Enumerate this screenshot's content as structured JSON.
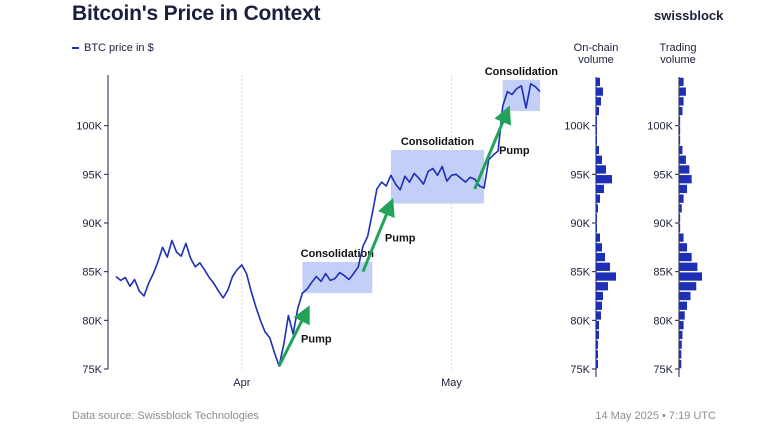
{
  "header": {
    "title": "Bitcoin's Price in Context",
    "brand": "swissblock"
  },
  "legend_label": "BTC price in $",
  "columns": {
    "onchain": [
      "On-chain",
      "volume"
    ],
    "trading": [
      "Trading",
      "volume"
    ]
  },
  "footer": {
    "source": "Data source: Swissblock Technologies",
    "timestamp": "14 May 2025 • 7:19 UTC"
  },
  "colors": {
    "line": "#1d2fb5",
    "box": "#b8c7f5",
    "arrow": "#21a35a",
    "grid": "#d7d7dc",
    "bar": "#1d2fb5"
  },
  "chart_data": {
    "type": "line",
    "series": [
      {
        "name": "BTC price in $",
        "values": [
          [
            0,
            84.5
          ],
          [
            1,
            84.1
          ],
          [
            2,
            84.4
          ],
          [
            3,
            83.5
          ],
          [
            4,
            84.2
          ],
          [
            5,
            83.0
          ],
          [
            6,
            82.5
          ],
          [
            7,
            83.8
          ],
          [
            8,
            84.8
          ],
          [
            9,
            86.0
          ],
          [
            10,
            87.5
          ],
          [
            11,
            86.5
          ],
          [
            12,
            88.2
          ],
          [
            13,
            87.0
          ],
          [
            14,
            86.6
          ],
          [
            15,
            87.9
          ],
          [
            16,
            86.4
          ],
          [
            17,
            85.5
          ],
          [
            18,
            85.9
          ],
          [
            19,
            85.2
          ],
          [
            20,
            84.4
          ],
          [
            21,
            83.8
          ],
          [
            22,
            83.0
          ],
          [
            23,
            82.3
          ],
          [
            24,
            83.1
          ],
          [
            25,
            84.5
          ],
          [
            26,
            85.2
          ],
          [
            27,
            85.7
          ],
          [
            28,
            84.8
          ],
          [
            29,
            83.0
          ],
          [
            30,
            81.4
          ],
          [
            31,
            80.0
          ],
          [
            32,
            78.8
          ],
          [
            33,
            78.2
          ],
          [
            34,
            76.7
          ],
          [
            35,
            75.3
          ],
          [
            36,
            77.5
          ],
          [
            37,
            80.5
          ],
          [
            38,
            78.6
          ],
          [
            39,
            81.2
          ],
          [
            40,
            82.8
          ],
          [
            41,
            83.2
          ],
          [
            42,
            83.9
          ],
          [
            43,
            84.5
          ],
          [
            44,
            84.0
          ],
          [
            45,
            84.8
          ],
          [
            46,
            84.1
          ],
          [
            47,
            84.3
          ],
          [
            48,
            84.9
          ],
          [
            49,
            84.6
          ],
          [
            50,
            84.2
          ],
          [
            51,
            84.8
          ],
          [
            52,
            85.5
          ],
          [
            53,
            87.6
          ],
          [
            54,
            88.6
          ],
          [
            55,
            91.0
          ],
          [
            56,
            93.5
          ],
          [
            57,
            94.2
          ],
          [
            58,
            93.8
          ],
          [
            59,
            94.9
          ],
          [
            60,
            94.0
          ],
          [
            61,
            93.4
          ],
          [
            62,
            94.8
          ],
          [
            63,
            94.2
          ],
          [
            64,
            95.1
          ],
          [
            65,
            94.6
          ],
          [
            66,
            94.0
          ],
          [
            67,
            95.3
          ],
          [
            68,
            95.6
          ],
          [
            69,
            94.9
          ],
          [
            70,
            95.8
          ],
          [
            71,
            94.3
          ],
          [
            72,
            94.9
          ],
          [
            73,
            95.0
          ],
          [
            74,
            94.6
          ],
          [
            75,
            94.2
          ],
          [
            76,
            94.7
          ],
          [
            77,
            94.5
          ],
          [
            78,
            93.8
          ],
          [
            79,
            93.6
          ],
          [
            80,
            96.5
          ],
          [
            81,
            97.0
          ],
          [
            82,
            97.4
          ],
          [
            83,
            102.0
          ],
          [
            84,
            103.5
          ],
          [
            85,
            103.2
          ],
          [
            86,
            103.8
          ],
          [
            87,
            104.1
          ],
          [
            88,
            101.8
          ],
          [
            89,
            104.3
          ],
          [
            90,
            104.0
          ],
          [
            91,
            103.5
          ]
        ]
      }
    ],
    "x_ticks": [
      {
        "x": 27,
        "label": "Apr"
      },
      {
        "x": 72,
        "label": "May"
      }
    ],
    "xlim": [
      0,
      91
    ],
    "ylim": [
      75,
      105
    ],
    "y_ticks": [
      75,
      80,
      85,
      90,
      95,
      100
    ],
    "y_tick_labels": [
      "75K",
      "80K",
      "85K",
      "90K",
      "95K",
      "100K"
    ],
    "grid": "vertical dotted at month starts",
    "annotations": [
      {
        "type": "box",
        "label": "Consolidation",
        "x0": 40,
        "x1": 55,
        "y0": 82.8,
        "y1": 86.0
      },
      {
        "type": "box",
        "label": "Consolidation",
        "x0": 59,
        "x1": 79,
        "y0": 92.0,
        "y1": 97.5
      },
      {
        "type": "box",
        "label": "Consolidation",
        "x0": 83,
        "x1": 91,
        "y0": 101.5,
        "y1": 104.7
      },
      {
        "type": "arrow",
        "label": "Pump",
        "x0": 35,
        "y0": 75.3,
        "x1": 41,
        "y1": 81.0
      },
      {
        "type": "arrow",
        "label": "Pump",
        "x0": 53,
        "y0": 85.0,
        "x1": 59,
        "y1": 92.0
      },
      {
        "type": "arrow",
        "label": "Pump",
        "x0": 77,
        "y0": 93.5,
        "x1": 84,
        "y1": 101.5
      }
    ],
    "onchain_volume": {
      "type": "bar",
      "orientation": "horizontal",
      "ylim": [
        75,
        105
      ],
      "bins": [
        [
          75.5,
          0.1
        ],
        [
          76.5,
          0.1
        ],
        [
          77.5,
          0.1
        ],
        [
          78.5,
          0.15
        ],
        [
          79.5,
          0.15
        ],
        [
          80.5,
          0.25
        ],
        [
          81.5,
          0.3
        ],
        [
          82.5,
          0.35
        ],
        [
          83.5,
          0.6
        ],
        [
          84.5,
          1.0
        ],
        [
          85.5,
          0.7
        ],
        [
          86.5,
          0.45
        ],
        [
          87.5,
          0.3
        ],
        [
          88.5,
          0.2
        ],
        [
          89.5,
          0.05
        ],
        [
          90.5,
          0.05
        ],
        [
          91.5,
          0.1
        ],
        [
          92.5,
          0.2
        ],
        [
          93.5,
          0.4
        ],
        [
          94.5,
          0.8
        ],
        [
          95.5,
          0.5
        ],
        [
          96.5,
          0.3
        ],
        [
          97.5,
          0.15
        ],
        [
          98.5,
          0.05
        ],
        [
          99.5,
          0.05
        ],
        [
          100.5,
          0.05
        ],
        [
          101.5,
          0.15
        ],
        [
          102.5,
          0.25
        ],
        [
          103.5,
          0.35
        ],
        [
          104.5,
          0.2
        ]
      ]
    },
    "trading_volume": {
      "type": "bar",
      "orientation": "horizontal",
      "ylim": [
        75,
        105
      ],
      "bins": [
        [
          75.5,
          0.1
        ],
        [
          76.5,
          0.1
        ],
        [
          77.5,
          0.12
        ],
        [
          78.5,
          0.15
        ],
        [
          79.5,
          0.2
        ],
        [
          80.5,
          0.25
        ],
        [
          81.5,
          0.35
        ],
        [
          82.5,
          0.5
        ],
        [
          83.5,
          0.75
        ],
        [
          84.5,
          1.0
        ],
        [
          85.5,
          0.8
        ],
        [
          86.5,
          0.55
        ],
        [
          87.5,
          0.35
        ],
        [
          88.5,
          0.2
        ],
        [
          89.5,
          0.05
        ],
        [
          90.5,
          0.05
        ],
        [
          91.5,
          0.12
        ],
        [
          92.5,
          0.2
        ],
        [
          93.5,
          0.35
        ],
        [
          94.5,
          0.55
        ],
        [
          95.5,
          0.45
        ],
        [
          96.5,
          0.3
        ],
        [
          97.5,
          0.15
        ],
        [
          98.5,
          0.05
        ],
        [
          99.5,
          0.05
        ],
        [
          100.5,
          0.05
        ],
        [
          101.5,
          0.15
        ],
        [
          102.5,
          0.2
        ],
        [
          103.5,
          0.3
        ],
        [
          104.5,
          0.2
        ]
      ]
    }
  }
}
